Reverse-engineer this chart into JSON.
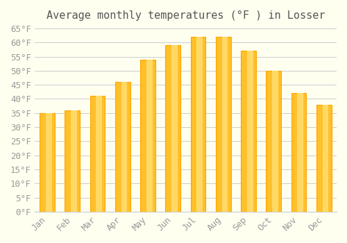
{
  "title": "Average monthly temperatures (°F ) in Losser",
  "months": [
    "Jan",
    "Feb",
    "Mar",
    "Apr",
    "May",
    "Jun",
    "Jul",
    "Aug",
    "Sep",
    "Oct",
    "Nov",
    "Dec"
  ],
  "values": [
    35,
    36,
    41,
    46,
    54,
    59,
    62,
    62,
    57,
    50,
    42,
    38
  ],
  "bar_color_face": "#FFC02A",
  "bar_color_edge": "#FFA500",
  "background_color": "#FFFFF0",
  "grid_color": "#CCCCCC",
  "text_color": "#999999",
  "ylim": [
    0,
    65
  ],
  "yticks": [
    0,
    5,
    10,
    15,
    20,
    25,
    30,
    35,
    40,
    45,
    50,
    55,
    60,
    65
  ],
  "title_fontsize": 11,
  "tick_fontsize": 9
}
